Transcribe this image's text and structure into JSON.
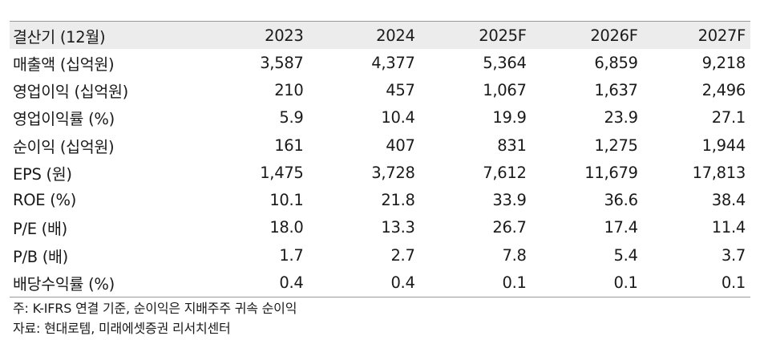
{
  "table": {
    "header": [
      "결산기 (12월)",
      "2023",
      "2024",
      "2025F",
      "2026F",
      "2027F"
    ],
    "rows": [
      {
        "label": "매출액 (십억원)",
        "values": [
          "3,587",
          "4,377",
          "5,364",
          "6,859",
          "9,218"
        ]
      },
      {
        "label": "영업이익 (십억원)",
        "values": [
          "210",
          "457",
          "1,067",
          "1,637",
          "2,496"
        ]
      },
      {
        "label": "영업이익률 (%)",
        "values": [
          "5.9",
          "10.4",
          "19.9",
          "23.9",
          "27.1"
        ]
      },
      {
        "label": "순이익 (십억원)",
        "values": [
          "161",
          "407",
          "831",
          "1,275",
          "1,944"
        ]
      },
      {
        "label": "EPS (원)",
        "values": [
          "1,475",
          "3,728",
          "7,612",
          "11,679",
          "17,813"
        ]
      },
      {
        "label": "ROE (%)",
        "values": [
          "10.1",
          "21.8",
          "33.9",
          "36.6",
          "38.4"
        ]
      },
      {
        "label": "P/E (배)",
        "values": [
          "18.0",
          "13.3",
          "26.7",
          "17.4",
          "11.4"
        ]
      },
      {
        "label": "P/B (배)",
        "values": [
          "1.7",
          "2.7",
          "7.8",
          "5.4",
          "3.7"
        ]
      },
      {
        "label": "배당수익률 (%)",
        "values": [
          "0.4",
          "0.4",
          "0.1",
          "0.1",
          "0.1"
        ]
      }
    ]
  },
  "notes": {
    "note": "주: K-IFRS 연결 기준, 순이익은 지배주주 귀속 순이익",
    "source": "자료: 현대로템, 미래에셋증권 리서치센터"
  }
}
